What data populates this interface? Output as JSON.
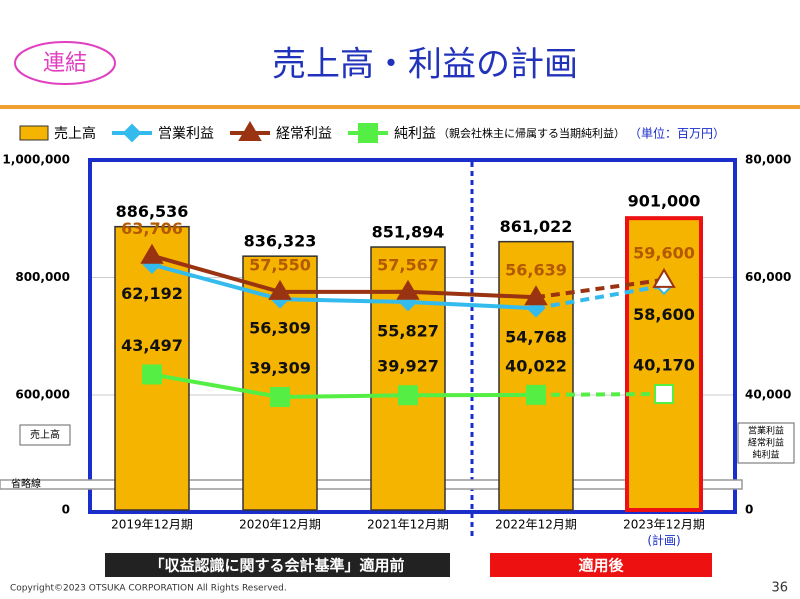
{
  "badge": "連結",
  "footer": {
    "copyright": "Copyright©2023 OTSUKA CORPORATION All Rights Reserved.",
    "page": "36"
  },
  "banners": {
    "before": "「収益認識に関する会計基準」適用前",
    "after": "適用後"
  },
  "chart_data": {
    "type": "bar-line",
    "title": "売上高・利益の計画",
    "net_note": "（親会社株主に帰属する当期純利益）",
    "unit": "（単位：百万円）",
    "break_label": "省略線",
    "plan_label": "(計画)",
    "dashed_from": 3,
    "categories": [
      "2019年12月期",
      "2020年12月期",
      "2021年12月期",
      "2022年12月期",
      "2023年12月期"
    ],
    "ylim": [
      0,
      1000000
    ],
    "yticks": [
      0,
      {
        "value": 600000,
        "label": "600,000"
      },
      {
        "value": 800000,
        "label": "800,000"
      },
      {
        "value": 1000000,
        "label": "1,000,000"
      }
    ],
    "y2lim": [
      0,
      80000
    ],
    "y2ticks": [
      0,
      {
        "value": 40000,
        "label": "40,000"
      },
      {
        "value": 60000,
        "label": "60,000"
      },
      {
        "value": 80000,
        "label": "80,000"
      }
    ],
    "grid": true,
    "series": [
      {
        "name": "売上高",
        "kind": "bar",
        "color": "#f5b400",
        "values": [
          886536,
          836323,
          851894,
          861022,
          901000
        ],
        "value_labels": [
          "886,536",
          "836,323",
          "851,894",
          "861,022",
          "901,000"
        ]
      },
      {
        "name": "営業利益",
        "kind": "line",
        "marker": "diamond",
        "axis": "y2",
        "color": "#33bbee",
        "values": [
          62192,
          56309,
          55827,
          54768,
          58600
        ],
        "value_labels": [
          "62,192",
          "56,309",
          "55,827",
          "54,768",
          "58,600"
        ]
      },
      {
        "name": "経常利益",
        "kind": "line",
        "marker": "triangle",
        "axis": "y2",
        "color": "#993311",
        "values": [
          63706,
          57550,
          57567,
          56639,
          59600
        ],
        "value_labels": [
          "63,706",
          "57,550",
          "57,567",
          "56,639",
          "59,600"
        ]
      },
      {
        "name": "純利益",
        "kind": "line",
        "marker": "square",
        "axis": "y2",
        "color": "#55ee44",
        "values": [
          43497,
          39309,
          39927,
          40022,
          40170
        ],
        "value_labels": [
          "43,497",
          "39,309",
          "39,927",
          "40,022",
          "40,170"
        ]
      }
    ]
  }
}
